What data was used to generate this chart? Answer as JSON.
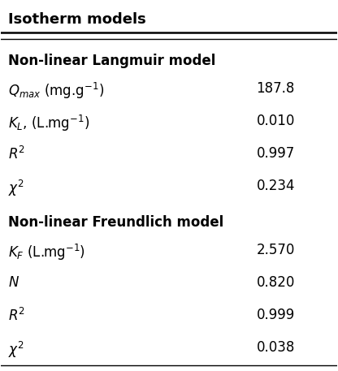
{
  "title": "Isotherm models",
  "sections": [
    {
      "header": "Non-linear Langmuir model",
      "rows": [
        {
          "label": "$\\mathit{Q}_{max}$ (mg.g$^{-1}$)",
          "value": "187.8"
        },
        {
          "label": "$\\mathit{K}_{L}$, (L.mg$^{-1}$)",
          "value": "0.010"
        },
        {
          "label": "$\\mathit{R}^{2}$",
          "value": "0.997"
        },
        {
          "label": "$\\chi^{2}$",
          "value": "0.234"
        }
      ]
    },
    {
      "header": "Non-linear Freundlich model",
      "rows": [
        {
          "label": "$\\mathit{K}_{F}$ (L.mg$^{-1}$)",
          "value": "2.570"
        },
        {
          "label": "$\\mathit{N}$",
          "value": "0.820"
        },
        {
          "label": "$\\mathit{R}^{2}$",
          "value": "0.999"
        },
        {
          "label": "$\\chi^{2}$",
          "value": "0.038"
        }
      ]
    }
  ],
  "bg_color": "#ffffff",
  "text_color": "#000000",
  "title_fontsize": 13,
  "header_fontsize": 12,
  "row_fontsize": 12,
  "line_color": "#000000"
}
